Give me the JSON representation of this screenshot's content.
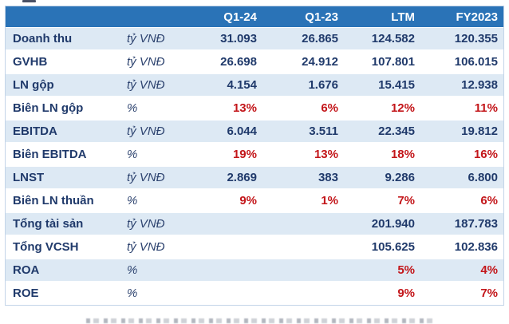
{
  "colors": {
    "header_bg": "#2A73B7",
    "alt_row_bg": "#DDE9F4",
    "text_navy": "#203A6B",
    "percent_red": "#C3161A",
    "table_border": "#C3D4E8"
  },
  "table": {
    "columns": [
      "Q1-24",
      "Q1-23",
      "LTM",
      "FY2023"
    ],
    "rows": [
      {
        "label": "Doanh thu",
        "unit": "tỷ VNĐ",
        "style": "number",
        "values": [
          "31.093",
          "26.865",
          "124.582",
          "120.355"
        ]
      },
      {
        "label": "GVHB",
        "unit": "tỷ VNĐ",
        "style": "number",
        "values": [
          "26.698",
          "24.912",
          "107.801",
          "106.015"
        ]
      },
      {
        "label": "LN gộp",
        "unit": "tỷ VNĐ",
        "style": "number",
        "values": [
          "4.154",
          "1.676",
          "15.415",
          "12.938"
        ]
      },
      {
        "label": "Biên LN gộp",
        "unit": "%",
        "style": "percent",
        "values": [
          "13%",
          "6%",
          "12%",
          "11%"
        ]
      },
      {
        "label": "EBITDA",
        "unit": "tỷ VNĐ",
        "style": "number",
        "values": [
          "6.044",
          "3.511",
          "22.345",
          "19.812"
        ]
      },
      {
        "label": "Biên EBITDA",
        "unit": "%",
        "style": "percent",
        "values": [
          "19%",
          "13%",
          "18%",
          "16%"
        ]
      },
      {
        "label": "LNST",
        "unit": "tỷ VNĐ",
        "style": "number",
        "values": [
          "2.869",
          "383",
          "9.286",
          "6.800"
        ]
      },
      {
        "label": "Biên LN thuần",
        "unit": "%",
        "style": "percent",
        "values": [
          "9%",
          "1%",
          "7%",
          "6%"
        ]
      },
      {
        "label": "Tổng tài sản",
        "unit": "tỷ VNĐ",
        "style": "number",
        "values": [
          "",
          "",
          "201.940",
          "187.783"
        ]
      },
      {
        "label": "Tổng VCSH",
        "unit": "tỷ VNĐ",
        "style": "number",
        "values": [
          "",
          "",
          "105.625",
          "102.836"
        ]
      },
      {
        "label": "ROA",
        "unit": "%",
        "style": "percent",
        "values": [
          "",
          "",
          "5%",
          "4%"
        ]
      },
      {
        "label": "ROE",
        "unit": "%",
        "style": "percent",
        "values": [
          "",
          "",
          "9%",
          "7%"
        ]
      }
    ]
  },
  "chart_data": {
    "type": "table",
    "title": "",
    "columns": [
      "",
      "",
      "Q1-24",
      "Q1-23",
      "LTM",
      "FY2023"
    ],
    "rows": [
      [
        "Doanh thu",
        "tỷ VNĐ",
        "31.093",
        "26.865",
        "124.582",
        "120.355"
      ],
      [
        "GVHB",
        "tỷ VNĐ",
        "26.698",
        "24.912",
        "107.801",
        "106.015"
      ],
      [
        "LN gộp",
        "tỷ VNĐ",
        "4.154",
        "1.676",
        "15.415",
        "12.938"
      ],
      [
        "Biên LN gộp",
        "%",
        "13%",
        "6%",
        "12%",
        "11%"
      ],
      [
        "EBITDA",
        "tỷ VNĐ",
        "6.044",
        "3.511",
        "22.345",
        "19.812"
      ],
      [
        "Biên EBITDA",
        "%",
        "19%",
        "13%",
        "18%",
        "16%"
      ],
      [
        "LNST",
        "tỷ VNĐ",
        "2.869",
        "383",
        "9.286",
        "6.800"
      ],
      [
        "Biên LN thuần",
        "%",
        "9%",
        "1%",
        "7%",
        "6%"
      ],
      [
        "Tổng tài sản",
        "tỷ VNĐ",
        "",
        "",
        "201.940",
        "187.783"
      ],
      [
        "Tổng VCSH",
        "tỷ VNĐ",
        "",
        "",
        "105.625",
        "102.836"
      ],
      [
        "ROA",
        "%",
        "",
        "",
        "5%",
        "4%"
      ],
      [
        "ROE",
        "%",
        "",
        "",
        "9%",
        "7%"
      ]
    ],
    "notes": "Percent rows rendered in red bold; value rows in navy bold; header row white-on-blue; odd data rows pale blue."
  }
}
